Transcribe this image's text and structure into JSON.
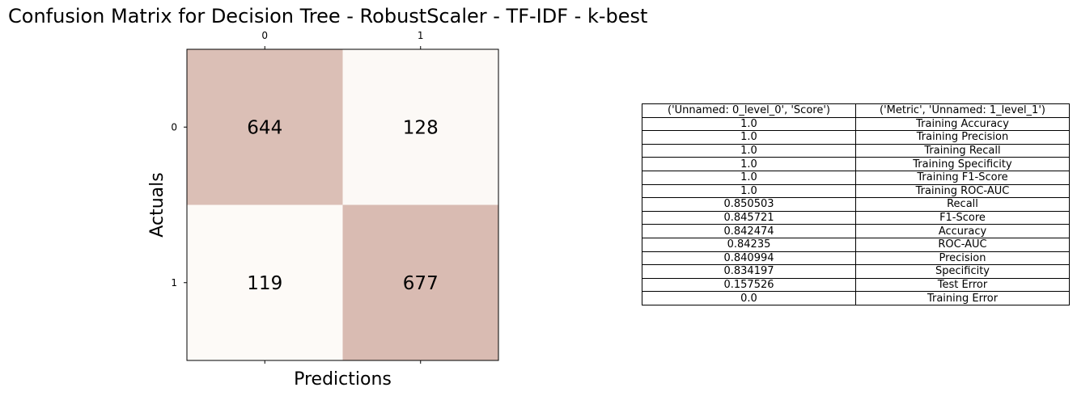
{
  "title": "Confusion Matrix for Decision Tree - RobustScaler - TF-IDF - k-best",
  "chart_data": {
    "type": "heatmap",
    "xlabel": "Predictions",
    "ylabel": "Actuals",
    "x_ticks": [
      "0",
      "1"
    ],
    "y_ticks": [
      "0",
      "1"
    ],
    "matrix": [
      [
        644,
        128
      ],
      [
        119,
        677
      ]
    ],
    "colors": {
      "low": "#fdfaf7",
      "high": "#d9bbb2"
    }
  },
  "table": {
    "header": [
      "('Unnamed: 0_level_0', 'Score')",
      "('Metric', 'Unnamed: 1_level_1')"
    ],
    "rows": [
      [
        "1.0",
        "Training Accuracy"
      ],
      [
        "1.0",
        "Training Precision"
      ],
      [
        "1.0",
        "Training Recall"
      ],
      [
        "1.0",
        "Training Specificity"
      ],
      [
        "1.0",
        "Training F1-Score"
      ],
      [
        "1.0",
        "Training ROC-AUC"
      ],
      [
        "0.850503",
        "Recall"
      ],
      [
        "0.845721",
        "F1-Score"
      ],
      [
        "0.842474",
        "Accuracy"
      ],
      [
        "0.84235",
        "ROC-AUC"
      ],
      [
        "0.840994",
        "Precision"
      ],
      [
        "0.834197",
        "Specificity"
      ],
      [
        "0.157526",
        "Test Error"
      ],
      [
        "0.0",
        "Training Error"
      ]
    ]
  }
}
